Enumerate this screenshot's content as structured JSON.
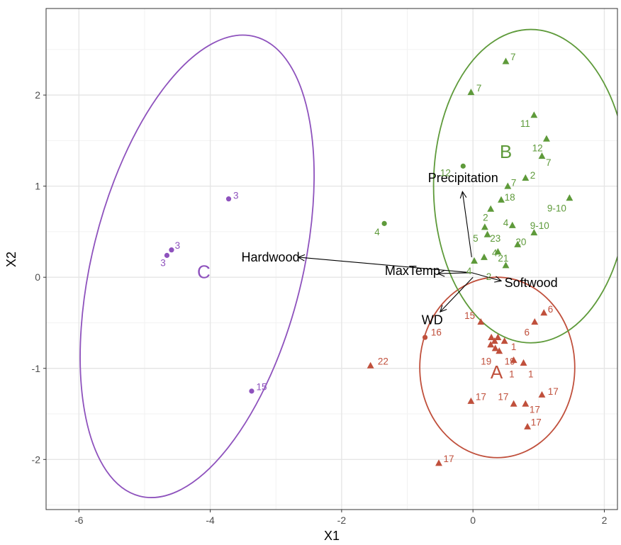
{
  "chart_data": {
    "type": "scatter",
    "title": "",
    "xlabel": "X1",
    "ylabel": "X2",
    "xlim": [
      -6.5,
      2.2
    ],
    "ylim": [
      -2.55,
      2.95
    ],
    "x_ticks": [
      -6,
      -4,
      -2,
      0,
      2
    ],
    "y_ticks": [
      -2,
      -1,
      0,
      1,
      2
    ],
    "grid": true,
    "colors": {
      "A": "#c0503c",
      "B": "#5e9a3a",
      "C": "#8e52bd"
    },
    "groups": [
      {
        "name": "A",
        "label_pos": [
          0.36,
          -1.11
        ],
        "ellipse": {
          "cx": 0.37,
          "cy": -0.99,
          "rx": 1.18,
          "ry": 0.99,
          "angle": 0
        }
      },
      {
        "name": "B",
        "label_pos": [
          0.5,
          1.31
        ],
        "ellipse": {
          "cx": 0.88,
          "cy": 1.0,
          "rx": 1.48,
          "ry": 1.72,
          "angle": 0
        }
      },
      {
        "name": "C",
        "label_pos": [
          -4.1,
          -0.01
        ],
        "ellipse": {
          "cx": -4.2,
          "cy": 0.12,
          "rx": 1.6,
          "ry": 2.6,
          "angle": 14
        }
      }
    ],
    "points": [
      {
        "group": "B",
        "shape": "triangle",
        "x": 0.5,
        "y": 2.37,
        "label": "7",
        "lx": 0.57,
        "ly": 2.42
      },
      {
        "group": "B",
        "shape": "triangle",
        "x": -0.03,
        "y": 2.03,
        "label": "7",
        "lx": 0.05,
        "ly": 2.08
      },
      {
        "group": "B",
        "shape": "triangle",
        "x": 0.93,
        "y": 1.78,
        "label": "11",
        "lx": 0.72,
        "ly": 1.69
      },
      {
        "group": "B",
        "shape": "triangle",
        "x": 1.12,
        "y": 1.52,
        "label": "12",
        "lx": 0.9,
        "ly": 1.42
      },
      {
        "group": "B",
        "shape": "triangle",
        "x": 1.05,
        "y": 1.33,
        "label": "7",
        "lx": 1.11,
        "ly": 1.26
      },
      {
        "group": "B",
        "shape": "circle",
        "x": -0.15,
        "y": 1.22,
        "label": "12",
        "lx": -0.5,
        "ly": 1.15
      },
      {
        "group": "B",
        "shape": "triangle",
        "x": 0.8,
        "y": 1.09,
        "label": "2",
        "lx": 0.87,
        "ly": 1.12
      },
      {
        "group": "B",
        "shape": "triangle",
        "x": 0.53,
        "y": 1.0,
        "label": "7",
        "lx": 0.58,
        "ly": 1.04
      },
      {
        "group": "B",
        "shape": "triangle",
        "x": 1.47,
        "y": 0.87,
        "label": "9-10",
        "lx": 1.13,
        "ly": 0.76
      },
      {
        "group": "B",
        "shape": "triangle",
        "x": 0.43,
        "y": 0.85,
        "label": "18",
        "lx": 0.48,
        "ly": 0.88
      },
      {
        "group": "B",
        "shape": "triangle",
        "x": 0.27,
        "y": 0.75,
        "label": "2",
        "lx": 0.15,
        "ly": 0.66
      },
      {
        "group": "B",
        "shape": "triangle",
        "x": 0.6,
        "y": 0.57,
        "label": "4",
        "lx": 0.46,
        "ly": 0.6
      },
      {
        "group": "B",
        "shape": "triangle",
        "x": 0.18,
        "y": 0.55,
        "label": "5",
        "lx": 0.0,
        "ly": 0.43
      },
      {
        "group": "B",
        "shape": "triangle",
        "x": 0.93,
        "y": 0.49,
        "label": "9-10",
        "lx": 0.87,
        "ly": 0.57
      },
      {
        "group": "B",
        "shape": "circle",
        "x": -1.35,
        "y": 0.59,
        "label": "4",
        "lx": -1.5,
        "ly": 0.5
      },
      {
        "group": "B",
        "shape": "triangle",
        "x": 0.22,
        "y": 0.47,
        "label": "23",
        "lx": 0.26,
        "ly": 0.43
      },
      {
        "group": "B",
        "shape": "triangle",
        "x": 0.68,
        "y": 0.36,
        "label": "20",
        "lx": 0.65,
        "ly": 0.39
      },
      {
        "group": "B",
        "shape": "triangle",
        "x": 0.38,
        "y": 0.28,
        "label": "4",
        "lx": 0.29,
        "ly": 0.27
      },
      {
        "group": "B",
        "shape": "triangle",
        "x": 0.17,
        "y": 0.22,
        "label": "21",
        "lx": 0.38,
        "ly": 0.21
      },
      {
        "group": "B",
        "shape": "triangle",
        "x": 0.02,
        "y": 0.18,
        "label": "4",
        "lx": -0.1,
        "ly": 0.07
      },
      {
        "group": "B",
        "shape": "triangle",
        "x": 0.5,
        "y": 0.13,
        "label": "2",
        "lx": 0.2,
        "ly": 0.01
      },
      {
        "group": "C",
        "shape": "circle",
        "x": -3.72,
        "y": 0.86,
        "label": "3",
        "lx": -3.65,
        "ly": 0.9
      },
      {
        "group": "C",
        "shape": "circle",
        "x": -4.59,
        "y": 0.3,
        "label": "3",
        "lx": -4.54,
        "ly": 0.35
      },
      {
        "group": "C",
        "shape": "circle",
        "x": -4.66,
        "y": 0.24,
        "label": "3",
        "lx": -4.76,
        "ly": 0.16
      },
      {
        "group": "C",
        "shape": "circle",
        "x": -3.37,
        "y": -1.25,
        "label": "15",
        "lx": -3.3,
        "ly": -1.2
      },
      {
        "group": "A",
        "shape": "triangle",
        "x": 1.08,
        "y": -0.39,
        "label": "6",
        "lx": 1.14,
        "ly": -0.35
      },
      {
        "group": "A",
        "shape": "triangle",
        "x": 0.12,
        "y": -0.49,
        "label": "15",
        "lx": -0.13,
        "ly": -0.42
      },
      {
        "group": "A",
        "shape": "triangle",
        "x": 0.94,
        "y": -0.49,
        "label": "6",
        "lx": 0.78,
        "ly": -0.6
      },
      {
        "group": "A",
        "shape": "circle",
        "x": -0.73,
        "y": -0.66,
        "label": "16",
        "lx": -0.64,
        "ly": -0.6
      },
      {
        "group": "A",
        "shape": "triangle",
        "x": 0.28,
        "y": -0.66,
        "label": "",
        "lx": 0,
        "ly": 0
      },
      {
        "group": "A",
        "shape": "triangle",
        "x": 0.38,
        "y": -0.66,
        "label": "",
        "lx": 0,
        "ly": 0
      },
      {
        "group": "A",
        "shape": "triangle",
        "x": 0.33,
        "y": -0.7,
        "label": "",
        "lx": 0,
        "ly": 0
      },
      {
        "group": "A",
        "shape": "triangle",
        "x": 0.48,
        "y": -0.7,
        "label": "1",
        "lx": 0.58,
        "ly": -0.76
      },
      {
        "group": "A",
        "shape": "triangle",
        "x": 0.27,
        "y": -0.74,
        "label": "",
        "lx": 0,
        "ly": 0
      },
      {
        "group": "A",
        "shape": "triangle",
        "x": 0.34,
        "y": -0.78,
        "label": "19",
        "lx": 0.12,
        "ly": -0.92
      },
      {
        "group": "A",
        "shape": "triangle",
        "x": 0.4,
        "y": -0.81,
        "label": "19",
        "lx": 0.48,
        "ly": -0.92
      },
      {
        "group": "A",
        "shape": "triangle",
        "x": 0.62,
        "y": -0.91,
        "label": "1",
        "lx": 0.55,
        "ly": -1.06
      },
      {
        "group": "A",
        "shape": "triangle",
        "x": 0.77,
        "y": -0.94,
        "label": "1",
        "lx": 0.84,
        "ly": -1.06
      },
      {
        "group": "A",
        "shape": "triangle",
        "x": -1.56,
        "y": -0.97,
        "label": "22",
        "lx": -1.45,
        "ly": -0.92
      },
      {
        "group": "A",
        "shape": "triangle",
        "x": 1.05,
        "y": -1.29,
        "label": "17",
        "lx": 1.14,
        "ly": -1.25
      },
      {
        "group": "A",
        "shape": "triangle",
        "x": -0.03,
        "y": -1.36,
        "label": "17",
        "lx": 0.04,
        "ly": -1.31
      },
      {
        "group": "A",
        "shape": "triangle",
        "x": 0.62,
        "y": -1.39,
        "label": "17",
        "lx": 0.38,
        "ly": -1.31
      },
      {
        "group": "A",
        "shape": "triangle",
        "x": 0.8,
        "y": -1.39,
        "label": "17",
        "lx": 0.86,
        "ly": -1.45
      },
      {
        "group": "A",
        "shape": "triangle",
        "x": 0.83,
        "y": -1.64,
        "label": "17",
        "lx": 0.88,
        "ly": -1.59
      },
      {
        "group": "A",
        "shape": "triangle",
        "x": -0.52,
        "y": -2.04,
        "label": "17",
        "lx": -0.45,
        "ly": -1.99
      }
    ],
    "vectors": [
      {
        "name": "Precipitation",
        "x0": -0.02,
        "y0": 0.22,
        "x1": -0.16,
        "y1": 0.94,
        "lx": -0.15,
        "ly": 1.09,
        "anchor": "middle"
      },
      {
        "name": "Hardwood",
        "x0": -0.02,
        "y0": 0.05,
        "x1": -2.66,
        "y1": 0.22,
        "lx": -2.64,
        "ly": 0.22,
        "anchor": "end"
      },
      {
        "name": "MaxTemp",
        "x0": -0.02,
        "y0": 0.05,
        "x1": -0.53,
        "y1": 0.04,
        "lx": -0.5,
        "ly": 0.07,
        "anchor": "end"
      },
      {
        "name": "Softwood",
        "x0": -0.02,
        "y0": 0.05,
        "x1": 0.43,
        "y1": -0.04,
        "lx": 0.48,
        "ly": -0.06,
        "anchor": "start"
      },
      {
        "name": "WD",
        "x0": 0.0,
        "y0": 0.0,
        "x1": -0.5,
        "y1": -0.38,
        "lx": -0.62,
        "ly": -0.47,
        "anchor": "middle"
      }
    ]
  }
}
